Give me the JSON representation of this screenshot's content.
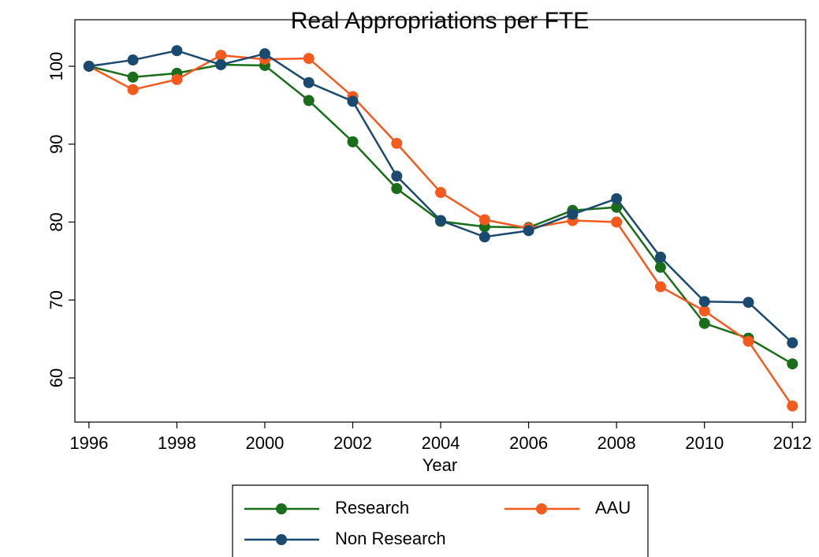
{
  "chart_data": {
    "type": "line",
    "title": "Real Appropriations per FTE",
    "x_label": "Year",
    "x": [
      1996,
      1997,
      1998,
      1999,
      2000,
      2001,
      2002,
      2003,
      2004,
      2005,
      2006,
      2007,
      2008,
      2009,
      2010,
      2011,
      2012
    ],
    "series": [
      {
        "name": "Research",
        "color": "#1a6d1a",
        "values": [
          100,
          98.6,
          99.1,
          100.2,
          100.1,
          95.6,
          90.3,
          84.3,
          80.1,
          79.4,
          79.3,
          81.5,
          81.9,
          74.2,
          67.0,
          65.1,
          61.8
        ]
      },
      {
        "name": "AAU",
        "color": "#f4591e",
        "values": [
          100,
          97.0,
          98.3,
          101.4,
          100.9,
          101.0,
          96.1,
          90.1,
          83.8,
          80.3,
          79.2,
          80.2,
          80.0,
          71.7,
          68.6,
          64.7,
          56.4
        ]
      },
      {
        "name": "Non Research",
        "color": "#1b4a70",
        "values": [
          100,
          100.8,
          102.0,
          100.2,
          101.6,
          97.9,
          95.5,
          85.9,
          80.2,
          78.1,
          78.9,
          81.0,
          83.0,
          75.5,
          69.8,
          69.7,
          64.5
        ]
      }
    ],
    "xlim": [
      1995.68,
      2012.3
    ],
    "xticks": [
      1996,
      1998,
      2000,
      2002,
      2004,
      2006,
      2008,
      2010,
      2012
    ],
    "ylim": [
      54.33,
      105.97
    ],
    "yticks": [
      60,
      70,
      80,
      90,
      100
    ],
    "grid": false,
    "legend": "bottom"
  }
}
